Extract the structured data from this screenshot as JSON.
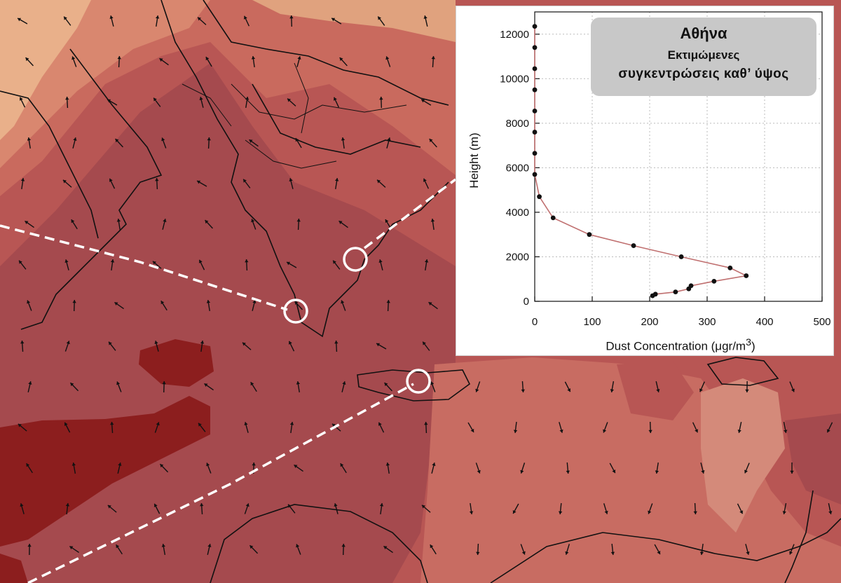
{
  "map": {
    "palette": {
      "darkest": "#8c1e1e",
      "dark": "#a54a4e",
      "mid": "#c05a55",
      "light": "#d98070",
      "pale": "#ecc59a",
      "coast": "#111111",
      "arrow": "#111111",
      "marker": "#ffffff"
    },
    "markers": [
      {
        "name": "marker-athens"
      },
      {
        "name": "marker-peloponnese"
      },
      {
        "name": "marker-crete"
      }
    ]
  },
  "inset": {
    "title": {
      "city": "Αθήνα",
      "line1": "Εκτιμώμενες",
      "line2": "συγκεντρώσεις καθ’ ύψος"
    },
    "ylabel": "Height (m)",
    "xlabel_main": "Dust Concentration (",
    "xlabel_unit": "μgr/m",
    "xlabel_sup": "3",
    "xlabel_end": ")"
  },
  "chart_data": {
    "type": "line",
    "title": "Αθήνα Εκτιμώμενες συγκεντρώσεις καθ’ ύψος",
    "xlabel": "Dust Concentration (μgr/m3)",
    "ylabel": "Height (m)",
    "xlim": [
      0,
      500
    ],
    "ylim": [
      0,
      13000
    ],
    "xticks": [
      0,
      100,
      200,
      300,
      400,
      500
    ],
    "yticks": [
      0,
      2000,
      4000,
      6000,
      8000,
      10000,
      12000
    ],
    "grid": true,
    "line_color": "#c07070",
    "points": [
      {
        "x": 205,
        "y": 250
      },
      {
        "x": 210,
        "y": 320
      },
      {
        "x": 245,
        "y": 420
      },
      {
        "x": 268,
        "y": 560
      },
      {
        "x": 272,
        "y": 700
      },
      {
        "x": 312,
        "y": 900
      },
      {
        "x": 368,
        "y": 1150
      },
      {
        "x": 340,
        "y": 1500
      },
      {
        "x": 255,
        "y": 2000
      },
      {
        "x": 172,
        "y": 2500
      },
      {
        "x": 95,
        "y": 3000
      },
      {
        "x": 32,
        "y": 3750
      },
      {
        "x": 8,
        "y": 4700
      },
      {
        "x": 0,
        "y": 5700
      },
      {
        "x": 0,
        "y": 6650
      },
      {
        "x": 0,
        "y": 7600
      },
      {
        "x": 0,
        "y": 8550
      },
      {
        "x": 0,
        "y": 9500
      },
      {
        "x": 0,
        "y": 10450
      },
      {
        "x": 0,
        "y": 11400
      },
      {
        "x": 0,
        "y": 12350
      }
    ]
  }
}
